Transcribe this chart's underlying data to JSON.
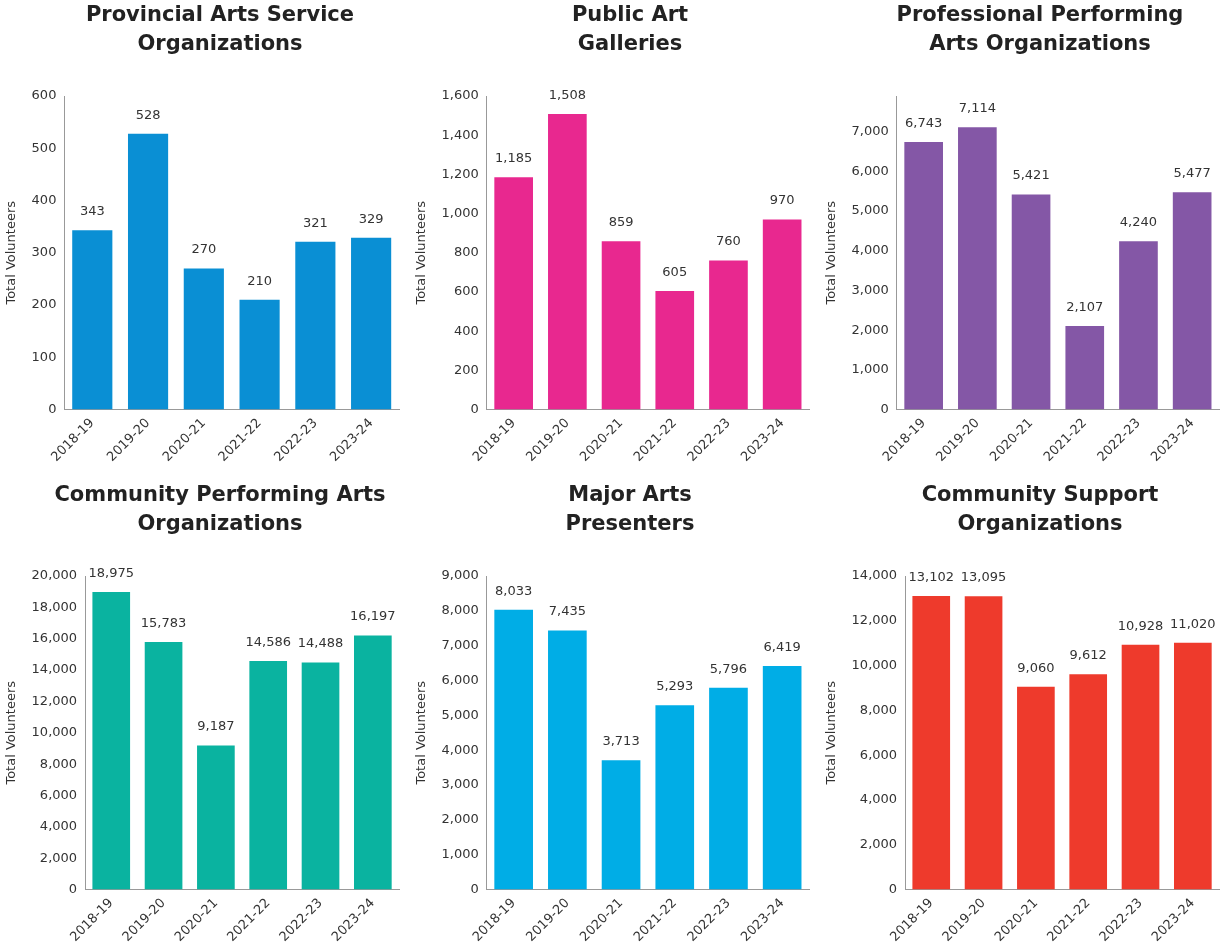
{
  "chart_data": [
    {
      "type": "bar",
      "title": "Provincial Arts Service\nOrganizations",
      "ylabel": "Total Volunteers",
      "categories": [
        "2018-19",
        "2019-20",
        "2020-21",
        "2021-22",
        "2022-23",
        "2023-24"
      ],
      "values": [
        343,
        528,
        270,
        210,
        321,
        329
      ],
      "value_labels": [
        "343",
        "528",
        "270",
        "210",
        "321",
        "329"
      ],
      "color": "#0a8fd4",
      "ylim": [
        0,
        600
      ],
      "yticks": [
        0,
        100,
        200,
        300,
        400,
        500,
        600
      ],
      "grid": false,
      "legend": false
    },
    {
      "type": "bar",
      "title": "Public Art\nGalleries",
      "ylabel": "Total Volunteers",
      "categories": [
        "2018-19",
        "2019-20",
        "2020-21",
        "2021-22",
        "2022-23",
        "2023-24"
      ],
      "values": [
        1185,
        1508,
        859,
        605,
        760,
        970
      ],
      "value_labels": [
        "1,185",
        "1,508",
        "859",
        "605",
        "760",
        "970"
      ],
      "color": "#e8288f",
      "ylim": [
        0,
        1600
      ],
      "yticks": [
        0,
        200,
        400,
        600,
        800,
        {
          "value": 1000,
          "label": "1,000"
        },
        {
          "value": 1200,
          "label": "1,200"
        },
        {
          "value": 1400,
          "label": "1,400"
        },
        {
          "value": 1600,
          "label": "1,600"
        }
      ],
      "grid": false,
      "legend": false
    },
    {
      "type": "bar",
      "title": "Professional Performing\nArts Organizations",
      "ylabel": "Total Volunteers",
      "categories": [
        "2018-19",
        "2019-20",
        "2020-21",
        "2021-22",
        "2022-23",
        "2023-24"
      ],
      "values": [
        6743,
        7114,
        5421,
        2107,
        4240,
        5477
      ],
      "value_labels": [
        "6,743",
        "7,114",
        "5,421",
        "2,107",
        "4,240",
        "5,477"
      ],
      "color": "#8457a6",
      "ylim": [
        0,
        7900
      ],
      "yticks": [
        0,
        {
          "value": 1000,
          "label": "1,000"
        },
        {
          "value": 2000,
          "label": "2,000"
        },
        {
          "value": 3000,
          "label": "3,000"
        },
        {
          "value": 4000,
          "label": "4,000"
        },
        {
          "value": 5000,
          "label": "5,000"
        },
        {
          "value": 6000,
          "label": "6,000"
        },
        {
          "value": 7000,
          "label": "7,000"
        }
      ],
      "grid": false,
      "legend": false
    },
    {
      "type": "bar",
      "title": "Community Performing Arts\nOrganizations",
      "ylabel": "Total Volunteers",
      "categories": [
        "2018-19",
        "2019-20",
        "2020-21",
        "2021-22",
        "2022-23",
        "2023-24"
      ],
      "values": [
        18975,
        15783,
        9187,
        14586,
        14488,
        16197
      ],
      "value_labels": [
        "18,975",
        "15,783",
        "9,187",
        "14,586",
        "14,488",
        "16,197"
      ],
      "color": "#0ab3a0",
      "ylim": [
        0,
        20000
      ],
      "yticks": [
        0,
        {
          "value": 2000,
          "label": "2,000"
        },
        {
          "value": 4000,
          "label": "4,000"
        },
        {
          "value": 6000,
          "label": "6,000"
        },
        {
          "value": 8000,
          "label": "8,000"
        },
        {
          "value": 10000,
          "label": "10,000"
        },
        {
          "value": 12000,
          "label": "12,000"
        },
        {
          "value": 14000,
          "label": "14,000"
        },
        {
          "value": 16000,
          "label": "16,000"
        },
        {
          "value": 18000,
          "label": "18,000"
        },
        {
          "value": 20000,
          "label": "20,000"
        }
      ],
      "grid": false,
      "legend": false
    },
    {
      "type": "bar",
      "title": "Major Arts\nPresenters",
      "ylabel": "Total Volunteers",
      "categories": [
        "2018-19",
        "2019-20",
        "2020-21",
        "2021-22",
        "2022-23",
        "2023-24"
      ],
      "values": [
        8033,
        7435,
        3713,
        5293,
        5796,
        6419
      ],
      "value_labels": [
        "8,033",
        "7,435",
        "3,713",
        "5,293",
        "5,796",
        "6,419"
      ],
      "color": "#00ade6",
      "ylim": [
        0,
        9000
      ],
      "yticks": [
        0,
        {
          "value": 1000,
          "label": "1,000"
        },
        {
          "value": 2000,
          "label": "2,000"
        },
        {
          "value": 3000,
          "label": "3,000"
        },
        {
          "value": 4000,
          "label": "4,000"
        },
        {
          "value": 5000,
          "label": "5,000"
        },
        {
          "value": 6000,
          "label": "6,000"
        },
        {
          "value": 7000,
          "label": "7,000"
        },
        {
          "value": 8000,
          "label": "8,000"
        },
        {
          "value": 9000,
          "label": "9,000"
        }
      ],
      "grid": false,
      "legend": false
    },
    {
      "type": "bar",
      "title": "Community Support\nOrganizations",
      "ylabel": "Total Volunteers",
      "categories": [
        "2018-19",
        "2019-20",
        "2020-21",
        "2021-22",
        "2022-23",
        "2023-24"
      ],
      "values": [
        13102,
        13095,
        9060,
        9612,
        10928,
        11020
      ],
      "value_labels": [
        "13,102",
        "13,095",
        "9,060",
        "9,612",
        "10,928",
        "11,020"
      ],
      "color": "#ee3a2c",
      "ylim": [
        0,
        14000
      ],
      "yticks": [
        0,
        {
          "value": 2000,
          "label": "2,000"
        },
        {
          "value": 4000,
          "label": "4,000"
        },
        {
          "value": 6000,
          "label": "6,000"
        },
        {
          "value": 8000,
          "label": "8,000"
        },
        {
          "value": 10000,
          "label": "10,000"
        },
        {
          "value": 12000,
          "label": "12,000"
        },
        {
          "value": 14000,
          "label": "14,000"
        }
      ],
      "grid": false,
      "legend": false
    }
  ]
}
